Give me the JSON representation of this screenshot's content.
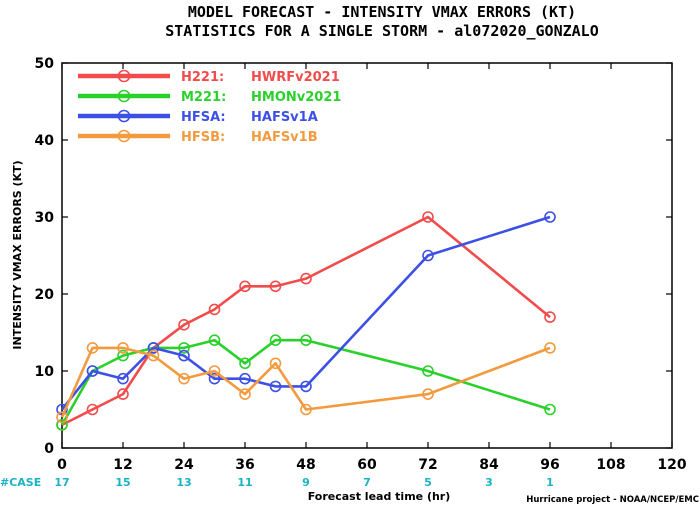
{
  "chart_data": {
    "type": "line",
    "title_lines": [
      "MODEL FORECAST - INTENSITY VMAX ERRORS (KT)",
      "STATISTICS FOR A SINGLE STORM - al072020_GONZALO"
    ],
    "xlabel": "Forecast lead time (hr)",
    "ylabel": "INTENSITY VMAX ERRORS (KT)",
    "xlim": [
      0,
      120
    ],
    "ylim": [
      0,
      50
    ],
    "xticks": [
      0,
      12,
      24,
      36,
      48,
      60,
      72,
      84,
      96,
      108,
      120
    ],
    "yticks": [
      0,
      10,
      20,
      30,
      40,
      50
    ],
    "legend_position": "top-left",
    "series": [
      {
        "name": "H221:",
        "label": "HWRFv2021",
        "color": "#f24b4b",
        "x": [
          0,
          6,
          12,
          18,
          24,
          30,
          36,
          42,
          48,
          72,
          96
        ],
        "values": [
          3,
          5,
          7,
          13,
          16,
          18,
          21,
          21,
          22,
          30,
          17
        ]
      },
      {
        "name": "M221:",
        "label": "HMONv2021",
        "color": "#2bd12b",
        "x": [
          0,
          6,
          12,
          18,
          24,
          30,
          36,
          42,
          48,
          72,
          96
        ],
        "values": [
          3,
          10,
          12,
          13,
          13,
          14,
          11,
          14,
          14,
          10,
          5
        ]
      },
      {
        "name": "HFSA:",
        "label": "HAFSv1A",
        "color": "#3c50e6",
        "x": [
          0,
          6,
          12,
          18,
          24,
          30,
          36,
          42,
          48,
          72,
          96
        ],
        "values": [
          5,
          10,
          9,
          13,
          12,
          9,
          9,
          8,
          8,
          25,
          30
        ]
      },
      {
        "name": "HFSB:",
        "label": "HAFSv1B",
        "color": "#f39a3f",
        "x": [
          0,
          6,
          12,
          18,
          24,
          30,
          36,
          42,
          48,
          72,
          96
        ],
        "values": [
          4,
          13,
          13,
          12,
          9,
          10,
          7,
          11,
          5,
          7,
          13
        ]
      }
    ],
    "case_label": "#CASE",
    "case_counts": [
      {
        "x": 0,
        "count": "17"
      },
      {
        "x": 12,
        "count": "15"
      },
      {
        "x": 24,
        "count": "13"
      },
      {
        "x": 36,
        "count": "11"
      },
      {
        "x": 48,
        "count": "9"
      },
      {
        "x": 60,
        "count": "7"
      },
      {
        "x": 72,
        "count": "5"
      },
      {
        "x": 84,
        "count": "3"
      },
      {
        "x": 96,
        "count": "1"
      }
    ],
    "credit": "Hurricane project - NOAA/NCEP/EMC",
    "grid": false
  }
}
